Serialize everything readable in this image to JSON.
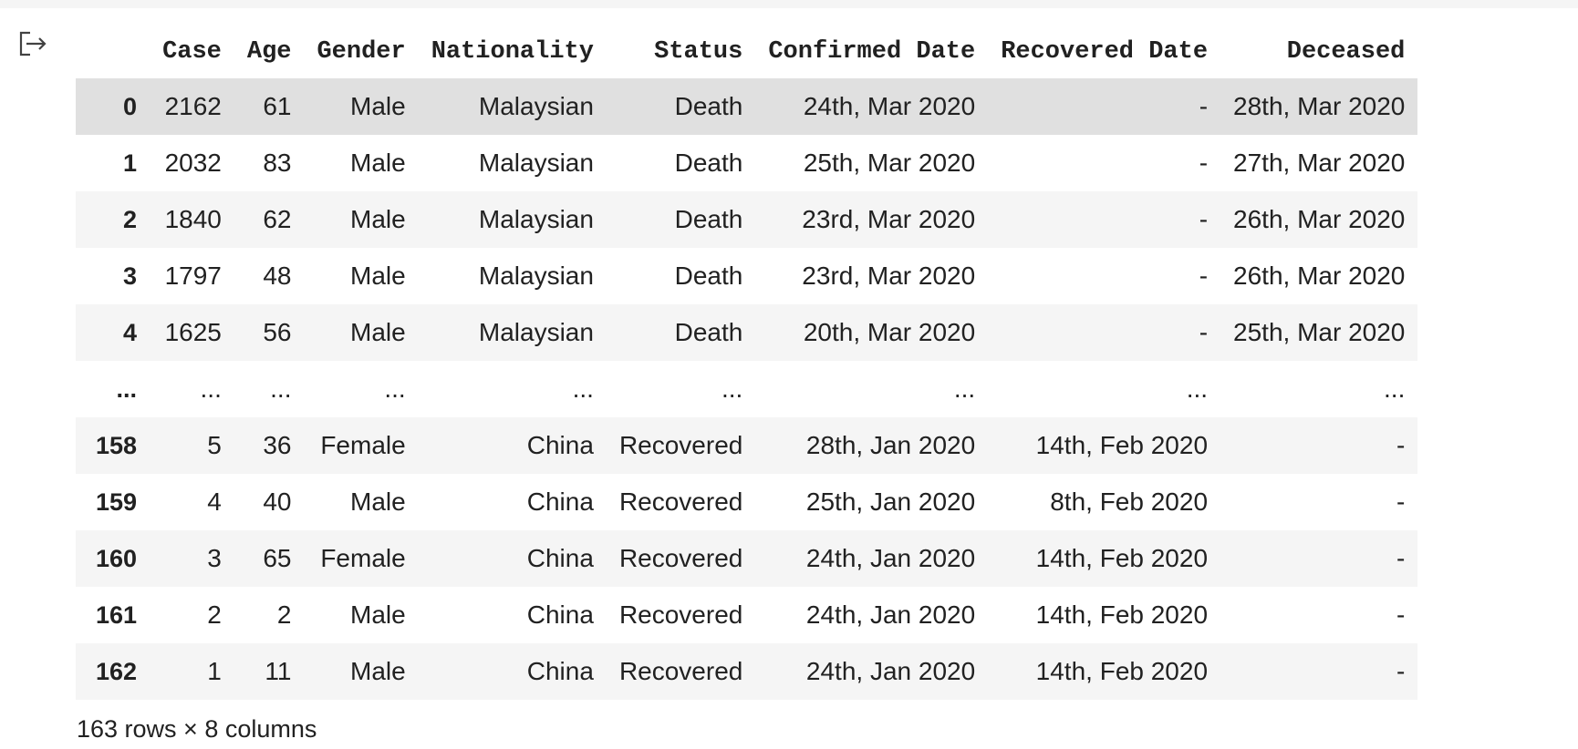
{
  "table": {
    "columns": [
      "Case",
      "Age",
      "Gender",
      "Nationality",
      "Status",
      "Confirmed Date",
      "Recovered Date",
      "Deceased"
    ],
    "rows": [
      {
        "index": "0",
        "cells": [
          "2162",
          "61",
          "Male",
          "Malaysian",
          "Death",
          "24th, Mar 2020",
          "-",
          "28th, Mar 2020"
        ]
      },
      {
        "index": "1",
        "cells": [
          "2032",
          "83",
          "Male",
          "Malaysian",
          "Death",
          "25th, Mar 2020",
          "-",
          "27th, Mar 2020"
        ]
      },
      {
        "index": "2",
        "cells": [
          "1840",
          "62",
          "Male",
          "Malaysian",
          "Death",
          "23rd, Mar 2020",
          "-",
          "26th, Mar 2020"
        ]
      },
      {
        "index": "3",
        "cells": [
          "1797",
          "48",
          "Male",
          "Malaysian",
          "Death",
          "23rd, Mar 2020",
          "-",
          "26th, Mar 2020"
        ]
      },
      {
        "index": "4",
        "cells": [
          "1625",
          "56",
          "Male",
          "Malaysian",
          "Death",
          "20th, Mar 2020",
          "-",
          "25th, Mar 2020"
        ]
      },
      {
        "index": "...",
        "cells": [
          "...",
          "...",
          "...",
          "...",
          "...",
          "...",
          "...",
          "..."
        ]
      },
      {
        "index": "158",
        "cells": [
          "5",
          "36",
          "Female",
          "China",
          "Recovered",
          "28th, Jan 2020",
          "14th, Feb 2020",
          "-"
        ]
      },
      {
        "index": "159",
        "cells": [
          "4",
          "40",
          "Male",
          "China",
          "Recovered",
          "25th, Jan 2020",
          "8th, Feb 2020",
          "-"
        ]
      },
      {
        "index": "160",
        "cells": [
          "3",
          "65",
          "Female",
          "China",
          "Recovered",
          "24th, Jan 2020",
          "14th, Feb 2020",
          "-"
        ]
      },
      {
        "index": "161",
        "cells": [
          "2",
          "2",
          "Male",
          "China",
          "Recovered",
          "24th, Jan 2020",
          "14th, Feb 2020",
          "-"
        ]
      },
      {
        "index": "162",
        "cells": [
          "1",
          "11",
          "Male",
          "China",
          "Recovered",
          "24th, Jan 2020",
          "14th, Feb 2020",
          "-"
        ]
      }
    ]
  },
  "footer": {
    "shape_text": "163 rows × 8 columns"
  },
  "icons": {
    "output_toggle": "output-redirect-icon"
  },
  "colors": {
    "hover_row": "#e0e0e0",
    "striped_row": "#f5f5f5",
    "text": "#212121"
  }
}
